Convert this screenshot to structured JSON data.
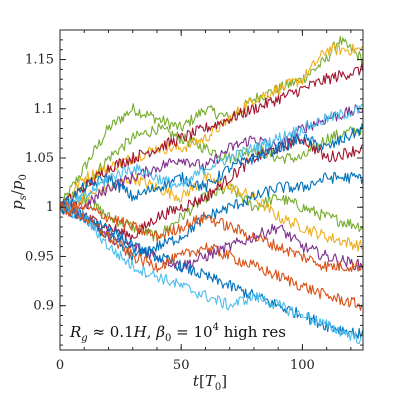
{
  "chart_data": {
    "type": "line",
    "xlabel_main": "t",
    "xlabel_unit_open": "[",
    "xlabel_unit_sym": "T",
    "xlabel_unit_sub": "0",
    "xlabel_unit_close": "]",
    "ylabel_num": "p",
    "ylabel_num_sub": "s",
    "ylabel_slash": "/",
    "ylabel_den": "p",
    "ylabel_den_sub": "0",
    "annotation": {
      "r": "R",
      "r_sub": "g",
      "approx": " ≈ 0.1",
      "h": "H",
      "comma": ", ",
      "beta": "β",
      "beta_sub": "0",
      "eq": " = 10",
      "exp": "4",
      "tail": " high res"
    },
    "xlim": [
      0,
      125
    ],
    "ylim": [
      0.855,
      1.18
    ],
    "x_ticks": [
      0,
      50,
      100
    ],
    "x_tick_labels": [
      "0",
      "50",
      "100"
    ],
    "y_ticks": [
      0.9,
      0.95,
      1.0,
      1.05,
      1.1,
      1.15
    ],
    "y_tick_labels": [
      "0.9",
      "0.95",
      "1",
      "1.05",
      "1.1",
      "1.15"
    ],
    "grid": false,
    "x_minor_step": 10,
    "y_minor_step": 0.01,
    "series": [
      {
        "color": "#77AC30",
        "x": [
          0,
          10,
          20,
          30,
          40,
          50,
          60,
          70,
          80,
          90,
          100,
          110,
          115,
          120,
          125
        ],
        "y": [
          1.0,
          1.04,
          1.08,
          1.1,
          1.09,
          1.08,
          1.1,
          1.09,
          1.11,
          1.12,
          1.13,
          1.15,
          1.17,
          1.16,
          1.15
        ]
      },
      {
        "color": "#77AC30",
        "x": [
          0,
          10,
          20,
          30,
          40,
          50,
          60,
          70,
          80,
          90,
          100,
          110,
          125
        ],
        "y": [
          1.0,
          1.02,
          1.05,
          1.07,
          1.08,
          1.07,
          1.06,
          1.05,
          1.06,
          1.05,
          1.05,
          1.07,
          1.08
        ]
      },
      {
        "color": "#77AC30",
        "x": [
          0,
          10,
          20,
          30,
          40,
          50,
          60,
          70,
          80,
          90,
          100,
          110,
          125
        ],
        "y": [
          1.0,
          1.01,
          0.99,
          0.98,
          0.97,
          0.99,
          1.01,
          1.02,
          1.0,
          1.01,
          1.0,
          0.99,
          0.98
        ]
      },
      {
        "color": "#EDB120",
        "x": [
          0,
          10,
          20,
          30,
          40,
          50,
          60,
          70,
          80,
          90,
          100,
          110,
          125
        ],
        "y": [
          1.0,
          1.03,
          1.04,
          1.05,
          1.06,
          1.06,
          1.07,
          1.09,
          1.11,
          1.12,
          1.13,
          1.16,
          1.16
        ]
      },
      {
        "color": "#EDB120",
        "x": [
          0,
          10,
          20,
          30,
          40,
          50,
          60,
          70,
          80,
          90,
          100,
          110,
          125
        ],
        "y": [
          1.0,
          1.01,
          1.02,
          1.03,
          1.02,
          1.01,
          1.03,
          1.02,
          1.01,
          0.99,
          0.98,
          0.97,
          0.96
        ]
      },
      {
        "color": "#A2142F",
        "x": [
          0,
          10,
          20,
          30,
          40,
          50,
          60,
          70,
          80,
          90,
          100,
          110,
          125
        ],
        "y": [
          1.0,
          1.02,
          1.04,
          1.05,
          1.06,
          1.07,
          1.08,
          1.09,
          1.1,
          1.11,
          1.12,
          1.13,
          1.14
        ]
      },
      {
        "color": "#A2142F",
        "x": [
          0,
          10,
          20,
          30,
          40,
          50,
          60,
          70,
          80,
          90,
          100,
          110,
          125
        ],
        "y": [
          1.0,
          0.99,
          0.98,
          0.97,
          0.99,
          1.0,
          1.01,
          1.03,
          1.05,
          1.06,
          1.07,
          1.05,
          1.06
        ]
      },
      {
        "color": "#7E2F8E",
        "x": [
          0,
          10,
          20,
          30,
          40,
          50,
          60,
          70,
          80,
          90,
          100,
          110,
          125
        ],
        "y": [
          1.0,
          1.0,
          1.02,
          1.03,
          1.04,
          1.05,
          1.04,
          1.06,
          1.07,
          1.06,
          1.08,
          1.09,
          1.1
        ]
      },
      {
        "color": "#7E2F8E",
        "x": [
          0,
          10,
          20,
          30,
          40,
          50,
          60,
          70,
          80,
          90,
          100,
          110,
          125
        ],
        "y": [
          1.0,
          0.99,
          0.97,
          0.96,
          0.95,
          0.94,
          0.95,
          0.96,
          0.97,
          0.98,
          0.96,
          0.95,
          0.94
        ]
      },
      {
        "color": "#0072BD",
        "x": [
          0,
          10,
          20,
          30,
          40,
          50,
          60,
          70,
          80,
          90,
          100,
          110,
          125
        ],
        "y": [
          1.0,
          1.02,
          1.03,
          1.01,
          1.02,
          1.03,
          1.02,
          1.04,
          1.05,
          1.06,
          1.07,
          1.06,
          1.08
        ]
      },
      {
        "color": "#0072BD",
        "x": [
          0,
          10,
          20,
          30,
          40,
          50,
          60,
          70,
          80,
          90,
          100,
          110,
          125
        ],
        "y": [
          1.0,
          0.99,
          0.97,
          0.95,
          0.96,
          0.97,
          0.99,
          1.0,
          1.01,
          1.02,
          1.02,
          1.03,
          1.03
        ]
      },
      {
        "color": "#0072BD",
        "x": [
          0,
          10,
          20,
          30,
          40,
          50,
          60,
          70,
          80,
          90,
          100,
          110,
          125
        ],
        "y": [
          1.0,
          0.99,
          0.98,
          0.96,
          0.95,
          0.94,
          0.93,
          0.92,
          0.91,
          0.9,
          0.89,
          0.88,
          0.87
        ]
      },
      {
        "color": "#4DBEEE",
        "x": [
          0,
          10,
          20,
          30,
          40,
          50,
          60,
          70,
          80,
          90,
          100,
          110,
          125
        ],
        "y": [
          1.0,
          1.01,
          1.03,
          1.04,
          1.03,
          1.02,
          1.04,
          1.05,
          1.06,
          1.07,
          1.08,
          1.09,
          1.1
        ]
      },
      {
        "color": "#4DBEEE",
        "x": [
          0,
          10,
          20,
          30,
          40,
          50,
          60,
          70,
          80,
          90,
          100,
          110,
          125
        ],
        "y": [
          1.0,
          0.99,
          0.96,
          0.94,
          0.93,
          0.92,
          0.91,
          0.9,
          0.91,
          0.9,
          0.89,
          0.88,
          0.865
        ]
      },
      {
        "color": "#D95319",
        "x": [
          0,
          10,
          20,
          30,
          40,
          50,
          60,
          70,
          80,
          90,
          100,
          110,
          125
        ],
        "y": [
          1.0,
          0.99,
          0.97,
          0.95,
          0.94,
          0.95,
          0.96,
          0.95,
          0.94,
          0.93,
          0.92,
          0.91,
          0.9
        ]
      },
      {
        "color": "#D95319",
        "x": [
          0,
          10,
          20,
          30,
          40,
          50,
          60,
          70,
          80,
          90,
          100,
          110,
          125
        ],
        "y": [
          1.0,
          1.0,
          0.99,
          0.98,
          0.97,
          0.98,
          0.99,
          0.98,
          0.97,
          0.96,
          0.95,
          0.94,
          0.94
        ]
      }
    ]
  }
}
